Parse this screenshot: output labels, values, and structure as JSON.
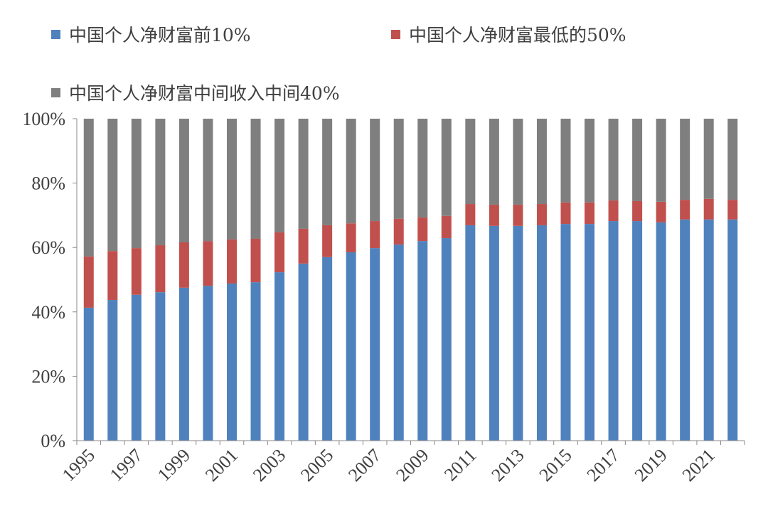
{
  "chart_data": {
    "type": "bar",
    "stacked": true,
    "title": "",
    "xlabel": "",
    "ylabel": "",
    "ylim": [
      0,
      100
    ],
    "yticks": [
      "0%",
      "20%",
      "40%",
      "60%",
      "80%",
      "100%"
    ],
    "categories": [
      "1995",
      "1996",
      "1997",
      "1998",
      "1999",
      "2000",
      "2001",
      "2002",
      "2003",
      "2004",
      "2005",
      "2006",
      "2007",
      "2008",
      "2009",
      "2010",
      "2011",
      "2012",
      "2013",
      "2014",
      "2015",
      "2016",
      "2017",
      "2018",
      "2019",
      "2020",
      "2021",
      "2022"
    ],
    "xtick_labels": [
      "1995",
      "1997",
      "1999",
      "2001",
      "2003",
      "2005",
      "2007",
      "2009",
      "2011",
      "2013",
      "2015",
      "2017",
      "2019",
      "2021"
    ],
    "legend_position": "top",
    "series": [
      {
        "name": "中国个人净财富前10%",
        "color": "#4f81bd",
        "values": [
          41.3,
          43.7,
          45.3,
          46.1,
          47.5,
          48.1,
          48.8,
          49.2,
          52.3,
          55.0,
          57.0,
          58.5,
          59.8,
          60.9,
          62.0,
          62.9,
          66.9,
          66.7,
          66.7,
          66.9,
          67.3,
          67.3,
          68.2,
          68.2,
          67.8,
          68.7,
          68.7,
          68.7
        ]
      },
      {
        "name": "中国个人净财富最低的50%",
        "color": "#c0504d",
        "values": [
          15.9,
          15.2,
          14.5,
          14.6,
          14.1,
          13.9,
          13.7,
          13.5,
          12.4,
          10.8,
          9.9,
          9.0,
          8.4,
          8.0,
          7.3,
          6.9,
          6.6,
          6.6,
          6.6,
          6.6,
          6.7,
          6.7,
          6.4,
          6.2,
          6.4,
          6.1,
          6.4,
          6.1
        ]
      },
      {
        "name": "中国个人净财富中间收入中间40%",
        "color": "#7f7f7f",
        "values": [
          42.8,
          41.1,
          40.2,
          39.3,
          38.4,
          38.0,
          37.5,
          37.3,
          35.3,
          34.2,
          33.1,
          32.5,
          31.8,
          31.1,
          30.7,
          30.2,
          26.5,
          26.7,
          26.7,
          26.5,
          26.0,
          26.0,
          25.4,
          25.6,
          25.8,
          25.2,
          24.9,
          25.2
        ]
      }
    ]
  }
}
